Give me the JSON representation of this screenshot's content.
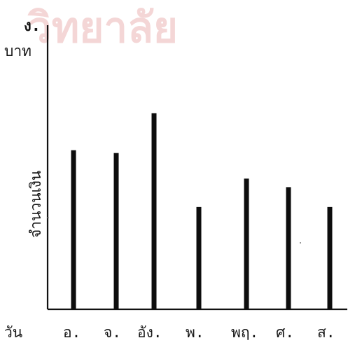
{
  "watermark_text": "วิทยาลัย",
  "chart_data": {
    "type": "bar",
    "unit_top": "ง.",
    "unit_bottom": "บาท",
    "ylabel": "จำนวนเงิน",
    "xlabel": "วัน",
    "categories": [
      "อ.",
      "จ.",
      "อัง.",
      "พ.",
      "พฤ.",
      "ศ.",
      "ส."
    ],
    "values": [
      56,
      55,
      69,
      36,
      46,
      43,
      36
    ],
    "ylim": [
      0,
      100
    ],
    "grid": false,
    "bar_color": "#0d0d0d",
    "watermark_color": "#f4d6d6"
  }
}
